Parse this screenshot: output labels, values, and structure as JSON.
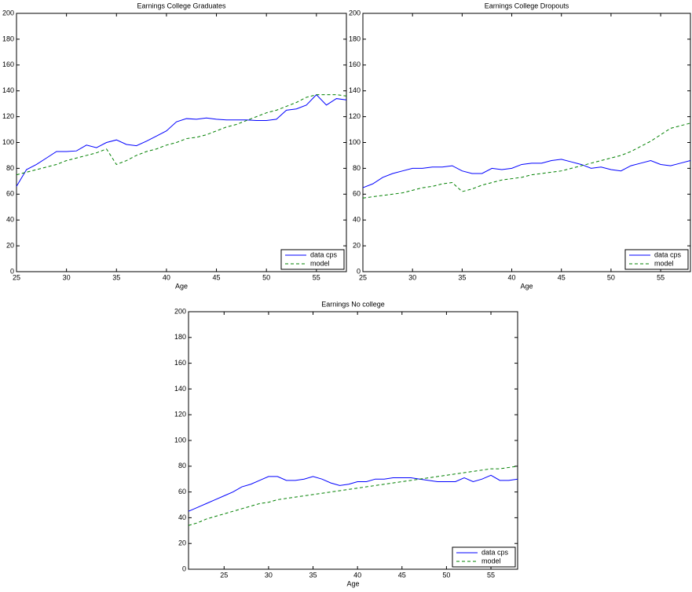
{
  "chart_data": [
    {
      "type": "line",
      "title": "Earnings College Graduates",
      "xlabel": "Age",
      "x": [
        25,
        26,
        27,
        28,
        29,
        30,
        31,
        32,
        33,
        34,
        35,
        36,
        37,
        38,
        39,
        40,
        41,
        42,
        43,
        44,
        45,
        46,
        47,
        48,
        49,
        50,
        51,
        52,
        53,
        54,
        55,
        56,
        57,
        58
      ],
      "series": [
        {
          "name": "data cps",
          "color": "#0000ff",
          "dash": false,
          "values": [
            66,
            79,
            83,
            88,
            93,
            93,
            93.5,
            98,
            96,
            100,
            102,
            98.5,
            97.5,
            101,
            105,
            109,
            116,
            118.5,
            118,
            119,
            118,
            117.5,
            117.5,
            117.5,
            117,
            117,
            118,
            125,
            126,
            129,
            137,
            129,
            134,
            133
          ]
        },
        {
          "name": "model",
          "color": "#008000",
          "dash": true,
          "values": [
            75,
            77,
            79,
            81,
            83,
            86,
            88,
            90,
            92,
            95,
            83,
            86,
            90,
            93,
            95,
            98,
            100,
            103,
            104,
            106,
            109,
            112,
            114,
            117,
            120,
            123,
            125,
            128,
            131,
            135,
            137,
            137,
            137,
            136
          ]
        }
      ],
      "xlim": [
        25,
        58
      ],
      "xticks": [
        25,
        30,
        35,
        40,
        45,
        50,
        55
      ],
      "ylim": [
        0,
        200
      ],
      "yticks": [
        0,
        20,
        40,
        60,
        80,
        100,
        120,
        140,
        160,
        180,
        200
      ],
      "legend": "lower right"
    },
    {
      "type": "line",
      "title": "Earnings College Dropouts",
      "xlabel": "Age",
      "x": [
        25,
        26,
        27,
        28,
        29,
        30,
        31,
        32,
        33,
        34,
        35,
        36,
        37,
        38,
        39,
        40,
        41,
        42,
        43,
        44,
        45,
        46,
        47,
        48,
        49,
        50,
        51,
        52,
        53,
        54,
        55,
        56,
        57,
        58
      ],
      "series": [
        {
          "name": "data cps",
          "color": "#0000ff",
          "dash": false,
          "values": [
            65,
            68,
            73,
            76,
            78,
            80,
            80,
            81,
            81,
            82,
            78,
            76,
            76,
            80,
            79,
            80,
            83,
            84,
            84,
            86,
            87,
            85,
            83,
            80,
            81,
            79,
            78,
            82,
            84,
            86,
            83,
            82,
            84,
            86
          ]
        },
        {
          "name": "model",
          "color": "#008000",
          "dash": true,
          "values": [
            57,
            58,
            59,
            60,
            61,
            63,
            65,
            66,
            68,
            69,
            62,
            64,
            67,
            69,
            71,
            72,
            73,
            75,
            76,
            77,
            78,
            80,
            82,
            84,
            86,
            88,
            90,
            93,
            97,
            101,
            106,
            111,
            113,
            115
          ]
        }
      ],
      "xlim": [
        25,
        58
      ],
      "xticks": [
        25,
        30,
        35,
        40,
        45,
        50,
        55
      ],
      "ylim": [
        0,
        200
      ],
      "yticks": [
        0,
        20,
        40,
        60,
        80,
        100,
        120,
        140,
        160,
        180,
        200
      ],
      "legend": "lower right"
    },
    {
      "type": "line",
      "title": "Earnings No college",
      "xlabel": "Age",
      "x": [
        21,
        22,
        23,
        24,
        25,
        26,
        27,
        28,
        29,
        30,
        31,
        32,
        33,
        34,
        35,
        36,
        37,
        38,
        39,
        40,
        41,
        42,
        43,
        44,
        45,
        46,
        47,
        48,
        49,
        50,
        51,
        52,
        53,
        54,
        55,
        56,
        57,
        58
      ],
      "series": [
        {
          "name": "data cps",
          "color": "#0000ff",
          "dash": false,
          "values": [
            45,
            48,
            51,
            54,
            57,
            60,
            64,
            66,
            69,
            72,
            72,
            69,
            69,
            70,
            72,
            70,
            67,
            65,
            66,
            68,
            68,
            70,
            70,
            71,
            71,
            71,
            70,
            69,
            68,
            68,
            68,
            71,
            68,
            70,
            73,
            69,
            69,
            70
          ]
        },
        {
          "name": "model",
          "color": "#008000",
          "dash": true,
          "values": [
            34,
            36,
            39,
            41,
            43,
            45,
            47,
            49,
            51,
            52,
            54,
            55,
            56,
            57,
            58,
            59,
            60,
            61,
            62,
            63,
            64,
            65,
            66,
            67,
            68,
            69,
            70,
            71,
            72,
            73,
            74,
            75,
            76,
            77,
            78,
            78,
            79,
            80
          ]
        }
      ],
      "xlim": [
        21,
        58
      ],
      "xticks": [
        25,
        30,
        35,
        40,
        45,
        50,
        55
      ],
      "ylim": [
        0,
        200
      ],
      "yticks": [
        0,
        20,
        40,
        60,
        80,
        100,
        120,
        140,
        160,
        180,
        200
      ],
      "legend": "lower right"
    }
  ]
}
